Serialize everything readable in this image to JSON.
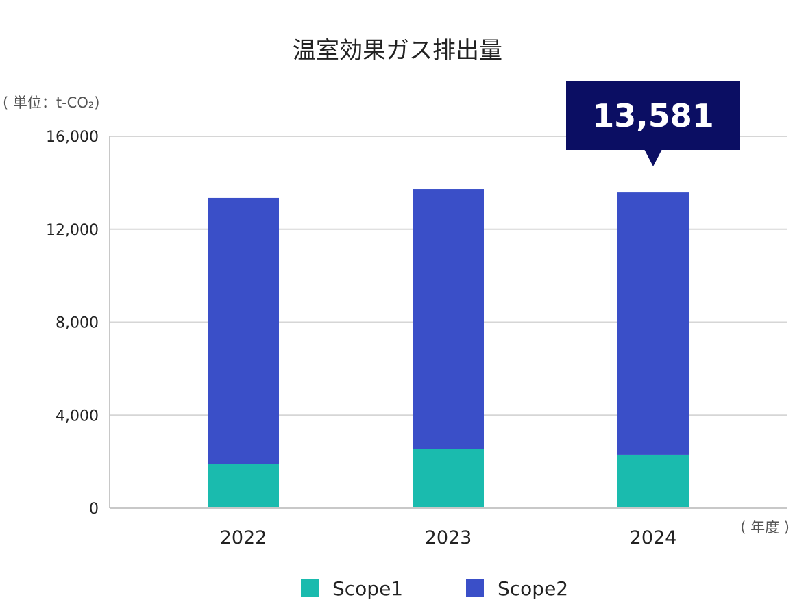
{
  "chart_data": {
    "type": "bar",
    "stacked": true,
    "title": "温室効果ガス排出量",
    "unit_label": "( 単位：t-CO₂)",
    "x_unit_label": "( 年度 )",
    "categories": [
      "2022",
      "2023",
      "2024"
    ],
    "series": [
      {
        "name": "Scope1",
        "color": "#1ABBAE",
        "values": [
          1900,
          2550,
          2300
        ]
      },
      {
        "name": "Scope2",
        "color": "#3A4FC8",
        "values": [
          11450,
          11180,
          11281
        ]
      }
    ],
    "ylim": [
      0,
      16000
    ],
    "yticks": [
      "0",
      "4,000",
      "8,000",
      "12,000",
      "16,000"
    ],
    "ytick_values": [
      0,
      4000,
      8000,
      12000,
      16000
    ],
    "grid": true,
    "legend_position": "bottom",
    "callout": {
      "category": "2024",
      "text": "13,581",
      "color": "#0B0E63"
    }
  }
}
